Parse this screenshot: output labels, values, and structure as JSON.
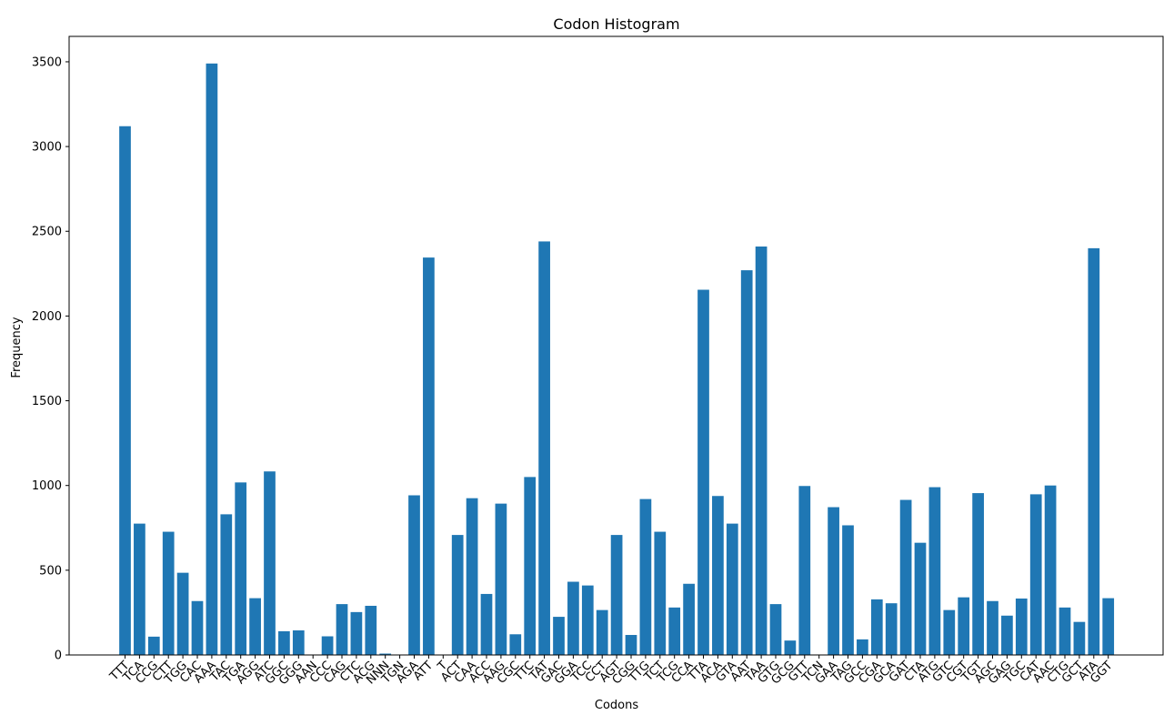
{
  "chart_data": {
    "type": "bar",
    "title": "Codon Histogram",
    "xlabel": "Codons",
    "ylabel": "Frequency",
    "ylim": [
      0,
      3650
    ],
    "yticks": [
      0,
      500,
      1000,
      1500,
      2000,
      2500,
      3000,
      3500
    ],
    "bar_color": "#1f77b4",
    "grid": false,
    "categories": [
      "TTT",
      "TCA",
      "CCG",
      "CTT",
      "TGG",
      "CAC",
      "AAA",
      "TAC",
      "TGA",
      "AGG",
      "ATC",
      "GGC",
      "GGG",
      "AAN",
      "CCC",
      "CAG",
      "CTC",
      "ACG",
      "NNN",
      "TGN",
      "AGA",
      "ATT",
      "T",
      "ACT",
      "CAA",
      "ACC",
      "AAG",
      "CGC",
      "TTC",
      "TAT",
      "GAC",
      "GGA",
      "TCC",
      "CCT",
      "AGT",
      "CGG",
      "TTG",
      "TCT",
      "TCG",
      "CCA",
      "TTA",
      "ACA",
      "GTA",
      "AAT",
      "TAA",
      "GTG",
      "GCG",
      "GTT",
      "TCN",
      "GAA",
      "TAG",
      "GCC",
      "CGA",
      "GCA",
      "GAT",
      "CTA",
      "ATG",
      "GTC",
      "CGT",
      "TGT",
      "AGC",
      "GAG",
      "TGC",
      "CAT",
      "AAC",
      "CTG",
      "GCT",
      "ATA",
      "GGT"
    ],
    "values": [
      3120,
      775,
      108,
      727,
      485,
      318,
      3490,
      830,
      1018,
      335,
      1083,
      140,
      145,
      2,
      110,
      300,
      253,
      290,
      8,
      2,
      942,
      2345,
      1,
      708,
      925,
      360,
      893,
      122,
      1050,
      2440,
      225,
      432,
      410,
      265,
      708,
      118,
      920,
      727,
      280,
      420,
      2155,
      938,
      775,
      2270,
      2410,
      300,
      85,
      997,
      1,
      872,
      765,
      92,
      328,
      305,
      915,
      662,
      990,
      265,
      340,
      955,
      318,
      232,
      333,
      948,
      1000,
      280,
      195,
      2400,
      335
    ]
  }
}
